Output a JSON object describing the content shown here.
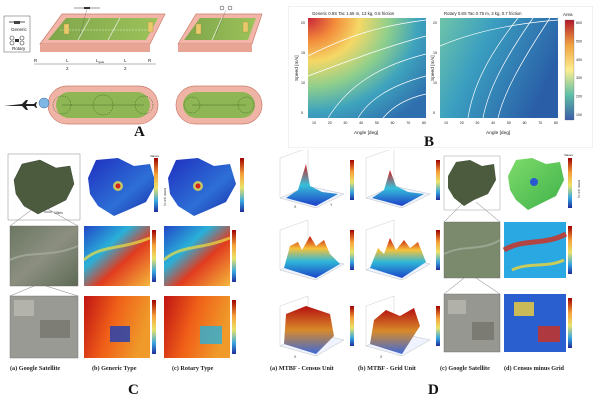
{
  "panel_letters": {
    "a": "A",
    "b": "B",
    "c": "C",
    "d": "D"
  },
  "panel_a": {
    "legend_generic": "Generic",
    "legend_rotary": "Rotary",
    "labels": {
      "r1": "R",
      "r2": "R",
      "lgate": "L",
      "lgate_sub": "gate",
      "lmid": "L",
      "lmid_sub": "mid",
      "lseg": "L",
      "lseg_sub": "2",
      "rh": "R",
      "rh_sub": "h",
      "half": "2"
    }
  },
  "panel_b": {
    "left_title": "Generic 0.8S Tac 1.65 m, 13 kg, 0.6 friction",
    "right_title": "Rotary 0.8S Tac 0.75 m, 3 kg, 0.7 friction",
    "xlabel": "Angle [deg]",
    "ylabel": "Speed [m/s]",
    "colorbar_title": "Area",
    "xticks": [
      "10",
      "20",
      "30",
      "40",
      "50",
      "60",
      "70",
      "80"
    ],
    "yticks": [
      "5",
      "10",
      "15",
      "20"
    ],
    "cbar_ticks": [
      "600",
      "500",
      "400",
      "300",
      "200",
      "100"
    ]
  },
  "panel_c": {
    "captions": [
      "(a) Google Satellite",
      "(b) Generic Type",
      "(c) Rotary Type"
    ],
    "cbar_title": "Values",
    "cbar_label": "MTBF (10³ h)",
    "scale": "10km"
  },
  "panel_d": {
    "captions": [
      "(a) MTBF - Census Unit",
      "(b) MTBF - Grid Unit",
      "(c) Google Satellite",
      "(d) Census minus Grid"
    ],
    "cbar_title": "Values",
    "cbar_label": "MTBF (10³ h)",
    "axis_x": "X",
    "axis_y": "Y"
  }
}
